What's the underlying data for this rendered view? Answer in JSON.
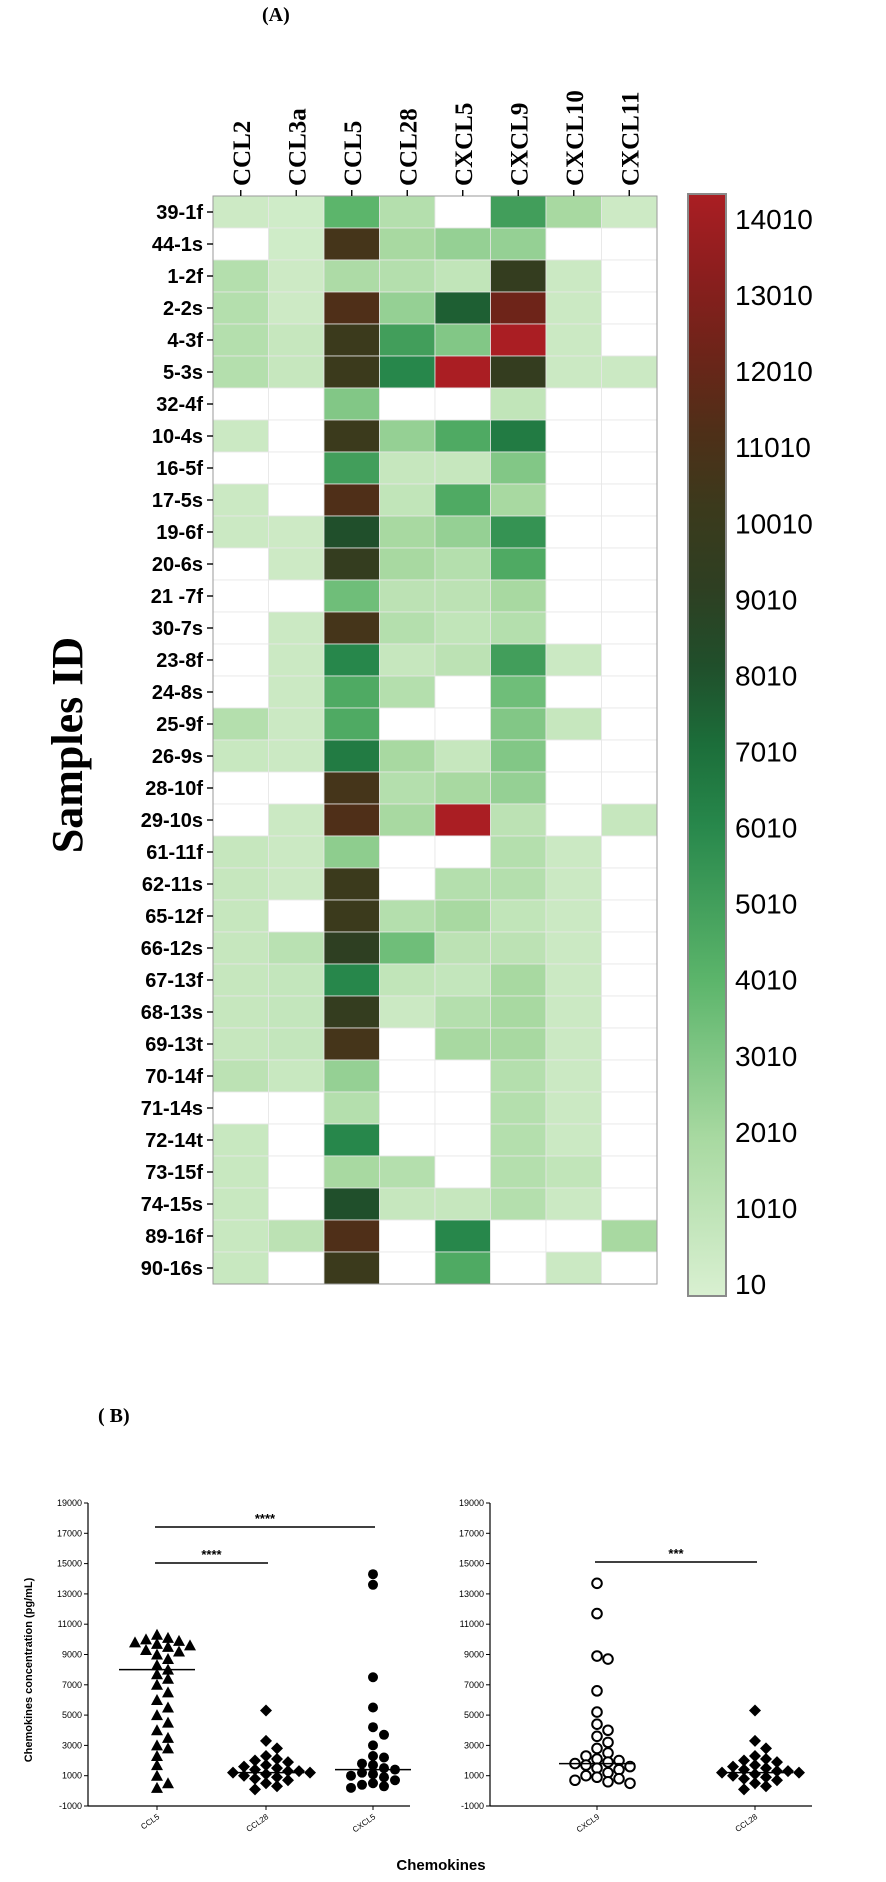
{
  "panel_a_label": "(A)",
  "panel_b_label": "( B)",
  "chart_data": [
    {
      "type": "heatmap",
      "columns": [
        "CCL2",
        "CCL3a",
        "CCL5",
        "CCL28",
        "CXCL5",
        "CXCL9",
        "CXCL10",
        "CXCL11"
      ],
      "rows": [
        "39-1f",
        "44-1s",
        "1-2f",
        "2-2s",
        "4-3f",
        "5-3s",
        "32-4f",
        "10-4s",
        "16-5f",
        "17-5s",
        "19-6f",
        "20-6s",
        "21 -7f",
        "30-7s",
        "23-8f",
        "24-8s",
        "25-9f",
        "26-9s",
        "28-10f",
        "29-10s",
        "61-11f",
        "62-11s",
        "65-12f",
        "66-12s",
        "67-13f",
        "68-13s",
        "69-13t",
        "70-14f",
        "71-14s",
        "72-14t",
        "73-15f",
        "74-15s",
        "89-16f",
        "90-16s"
      ],
      "values": [
        [
          500,
          400,
          4000,
          1500,
          10,
          5000,
          2000,
          500
        ],
        [
          10,
          400,
          10500,
          2000,
          2500,
          2500,
          10,
          10
        ],
        [
          1500,
          500,
          1800,
          1500,
          1000,
          9500,
          600,
          10
        ],
        [
          1500,
          500,
          11000,
          2500,
          7500,
          12000,
          600,
          10
        ],
        [
          1500,
          800,
          10000,
          5000,
          3000,
          14010,
          600,
          10
        ],
        [
          1500,
          800,
          10000,
          6000,
          14010,
          9500,
          600,
          600
        ],
        [
          10,
          10,
          3000,
          10,
          10,
          1000,
          10,
          10
        ],
        [
          600,
          10,
          10000,
          2500,
          4500,
          6500,
          10,
          10
        ],
        [
          10,
          10,
          5000,
          800,
          800,
          3000,
          10,
          10
        ],
        [
          600,
          10,
          11000,
          1000,
          4500,
          2000,
          10,
          10
        ],
        [
          600,
          500,
          8000,
          2000,
          2500,
          5500,
          10,
          10
        ],
        [
          10,
          500,
          9500,
          2000,
          1500,
          4500,
          10,
          10
        ],
        [
          10,
          10,
          3500,
          1200,
          1200,
          2000,
          10,
          10
        ],
        [
          10,
          600,
          10500,
          1500,
          1000,
          1500,
          10,
          10
        ],
        [
          10,
          600,
          6000,
          800,
          1200,
          5000,
          600,
          10
        ],
        [
          10,
          600,
          4500,
          1500,
          10,
          3500,
          10,
          10
        ],
        [
          1500,
          600,
          4500,
          10,
          10,
          3000,
          800,
          10
        ],
        [
          700,
          600,
          6500,
          2000,
          800,
          3000,
          10,
          10
        ],
        [
          10,
          10,
          10500,
          1500,
          2000,
          2500,
          10,
          10
        ],
        [
          10,
          600,
          11000,
          2000,
          14010,
          1200,
          10,
          800
        ],
        [
          800,
          600,
          2700,
          10,
          10,
          1500,
          600,
          10
        ],
        [
          800,
          600,
          10000,
          10,
          1500,
          1500,
          600,
          10
        ],
        [
          800,
          10,
          10000,
          1500,
          2000,
          1000,
          600,
          10
        ],
        [
          800,
          1300,
          9000,
          3500,
          1200,
          1200,
          600,
          10
        ],
        [
          800,
          900,
          6000,
          1000,
          900,
          2000,
          600,
          10
        ],
        [
          800,
          900,
          9500,
          600,
          1500,
          2000,
          600,
          10
        ],
        [
          800,
          900,
          10500,
          10,
          2000,
          2000,
          600,
          10
        ],
        [
          1200,
          700,
          2500,
          10,
          10,
          1500,
          600,
          10
        ],
        [
          10,
          10,
          1500,
          10,
          10,
          1500,
          600,
          10
        ],
        [
          700,
          10,
          6000,
          10,
          10,
          1500,
          600,
          10
        ],
        [
          700,
          10,
          2000,
          1500,
          10,
          1500,
          1000,
          10
        ],
        [
          700,
          10,
          8000,
          800,
          800,
          1500,
          600,
          10
        ],
        [
          700,
          1200,
          11000,
          10,
          6000,
          10,
          10,
          2000
        ],
        [
          700,
          10,
          10000,
          10,
          4500,
          10,
          600,
          10
        ]
      ],
      "ylabel": "Samples ID",
      "color_scale": {
        "min": 10,
        "max": 14010,
        "ticks": [
          "14010",
          "13010",
          "12010",
          "11010",
          "10010",
          "9010",
          "8010",
          "7010",
          "6010",
          "5010",
          "4010",
          "3010",
          "2010",
          "1010",
          "10"
        ],
        "stops": [
          {
            "v": 10,
            "color": "#d9f0d1"
          },
          {
            "v": 2010,
            "color": "#a8d9a1"
          },
          {
            "v": 4010,
            "color": "#5cb56b"
          },
          {
            "v": 6010,
            "color": "#27874b"
          },
          {
            "v": 7010,
            "color": "#1c6e3a"
          },
          {
            "v": 8010,
            "color": "#204f2b"
          },
          {
            "v": 9010,
            "color": "#2e3f22"
          },
          {
            "v": 10010,
            "color": "#3b3a1c"
          },
          {
            "v": 11010,
            "color": "#4f2f18"
          },
          {
            "v": 12010,
            "color": "#6e2419"
          },
          {
            "v": 13010,
            "color": "#8c1e1e"
          },
          {
            "v": 14010,
            "color": "#aa1e23"
          }
        ],
        "empty_color": "#ffffff"
      }
    },
    {
      "type": "scatter",
      "ylabel": "Chemokines concentration (pg/mL)",
      "xlabel": "Chemokines",
      "ylim": [
        -1000,
        19000
      ],
      "yticks": [
        "19000",
        "17000",
        "15000",
        "13000",
        "11000",
        "9000",
        "7000",
        "5000",
        "3000",
        "1000",
        "-1000"
      ],
      "groups": [
        {
          "name": "CCL5",
          "marker": "triangle",
          "median": 8000,
          "values": [
            10300,
            10100,
            10000,
            9900,
            9800,
            9700,
            9600,
            9500,
            9300,
            9200,
            9000,
            8700,
            8300,
            8000,
            7700,
            7400,
            7000,
            6500,
            6000,
            5500,
            5000,
            4500,
            4000,
            3500,
            3000,
            2800,
            2300,
            1700,
            1000,
            500,
            200
          ]
        },
        {
          "name": "CCL28",
          "marker": "diamond",
          "median": 1200,
          "values": [
            5300,
            3300,
            2800,
            2300,
            2100,
            2000,
            1900,
            1700,
            1600,
            1500,
            1400,
            1300,
            1300,
            1200,
            1200,
            1100,
            1000,
            900,
            800,
            700,
            500,
            300,
            100
          ]
        },
        {
          "name": "CXCL5",
          "marker": "circle-filled",
          "median": 1400,
          "values": [
            14300,
            13600,
            7500,
            5500,
            4200,
            3700,
            3000,
            2300,
            2200,
            1800,
            1700,
            1500,
            1400,
            1200,
            1100,
            1000,
            900,
            700,
            500,
            400,
            300,
            200
          ]
        }
      ],
      "significance": [
        {
          "from": "CCL5",
          "to": "CCL28",
          "label": "****"
        },
        {
          "from": "CCL5",
          "to": "CXCL5",
          "label": "****"
        }
      ]
    },
    {
      "type": "scatter",
      "ylim": [
        -1000,
        19000
      ],
      "yticks": [
        "19000",
        "17000",
        "15000",
        "13000",
        "11000",
        "9000",
        "7000",
        "5000",
        "3000",
        "1000",
        "-1000"
      ],
      "groups": [
        {
          "name": "CXCL9",
          "marker": "circle-open",
          "median": 1800,
          "values": [
            13700,
            11700,
            8900,
            8700,
            6600,
            5200,
            4400,
            4000,
            3600,
            3200,
            2800,
            2500,
            2300,
            2100,
            2000,
            1900,
            1800,
            1700,
            1600,
            1500,
            1400,
            1200,
            1000,
            900,
            800,
            700,
            600,
            500
          ]
        },
        {
          "name": "CCL28",
          "marker": "diamond",
          "median": 1200,
          "values": [
            5300,
            3300,
            2800,
            2300,
            2100,
            2000,
            1900,
            1700,
            1600,
            1500,
            1400,
            1300,
            1300,
            1200,
            1200,
            1100,
            1000,
            900,
            800,
            700,
            500,
            300,
            100
          ]
        }
      ],
      "significance": [
        {
          "from": "CXCL9",
          "to": "CCL28",
          "label": "***"
        }
      ]
    }
  ]
}
